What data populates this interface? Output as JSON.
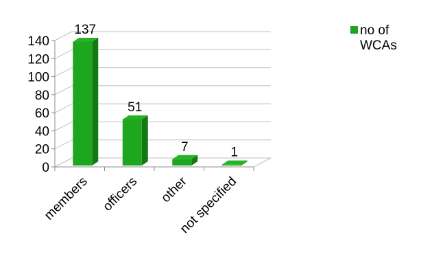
{
  "chart_data": {
    "type": "bar",
    "title": "",
    "xlabel": "",
    "ylabel": "",
    "categories": [
      "members",
      "officers",
      "other",
      "not specified"
    ],
    "series": [
      {
        "name": "no of WCAs",
        "values": [
          137,
          51,
          7,
          1
        ],
        "color": "#1ea61e"
      }
    ],
    "ylim": [
      0,
      140
    ],
    "yticks": [
      "0",
      "20",
      "40",
      "60",
      "80",
      "100",
      "120",
      "140"
    ],
    "data_labels": [
      "137",
      "51",
      "7",
      "1"
    ],
    "grid": true,
    "three_d": true,
    "legend_position": "right"
  }
}
